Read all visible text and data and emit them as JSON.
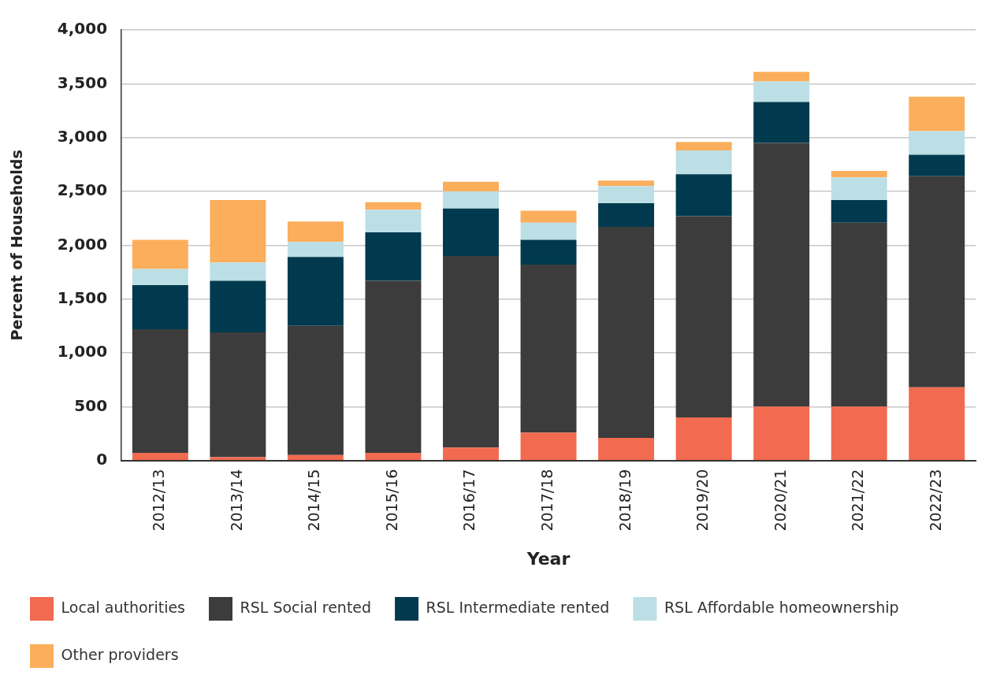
{
  "chart_data": {
    "type": "bar",
    "stacked": true,
    "xlabel": "Year",
    "ylabel": "Percent of Households",
    "categories": [
      "2012/13",
      "2013/14",
      "2014/15",
      "2015/16",
      "2016/17",
      "2017/18",
      "2018/19",
      "2019/20",
      "2020/21",
      "2021/22",
      "2022/23"
    ],
    "series": [
      {
        "name": "Local authorities",
        "color": "#f26a4f",
        "values": [
          70,
          30,
          50,
          70,
          120,
          260,
          210,
          400,
          500,
          500,
          680
        ]
      },
      {
        "name": "RSL Social rented",
        "color": "#3c3c3c",
        "values": [
          1150,
          1160,
          1200,
          1600,
          1780,
          1560,
          1960,
          1870,
          2450,
          1710,
          1960
        ]
      },
      {
        "name": "RSL Intermediate rented",
        "color": "#013a4e",
        "values": [
          410,
          480,
          640,
          450,
          440,
          230,
          220,
          390,
          380,
          210,
          200
        ]
      },
      {
        "name": "RSL Affordable homeownership",
        "color": "#bcdfe6",
        "values": [
          150,
          170,
          140,
          210,
          160,
          160,
          160,
          220,
          190,
          210,
          220
        ]
      },
      {
        "name": "Other providers",
        "color": "#fbae5c",
        "values": [
          270,
          580,
          190,
          70,
          90,
          110,
          50,
          80,
          90,
          60,
          320
        ]
      }
    ],
    "ylim": [
      0,
      4000
    ],
    "yticks": [
      0,
      500,
      {
        "value": 1000,
        "label": "1,000"
      },
      {
        "value": 1500,
        "label": "1,500"
      },
      {
        "value": 2000,
        "label": "2,000"
      },
      {
        "value": 2500,
        "label": "2,500"
      },
      {
        "value": 3000,
        "label": "3,000"
      },
      {
        "value": 3500,
        "label": "3,500"
      },
      {
        "value": 4000,
        "label": "4,000"
      }
    ],
    "grid": "y",
    "legend": "bottom"
  }
}
